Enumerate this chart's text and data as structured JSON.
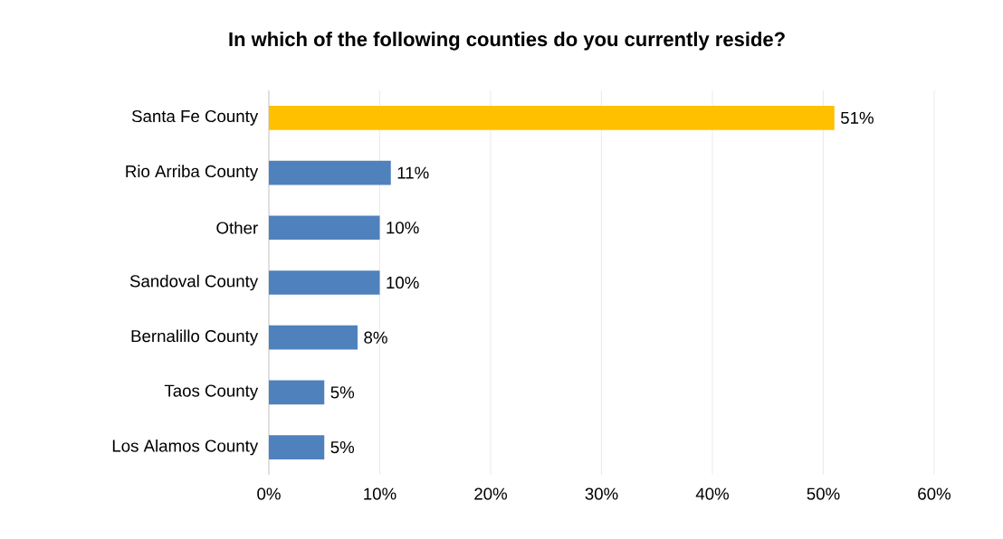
{
  "chart_data": {
    "type": "bar",
    "orientation": "horizontal",
    "title": "In which of the following counties do you currently reside?",
    "categories": [
      "Santa Fe County",
      "Rio Arriba County",
      "Other",
      "Sandoval County",
      "Bernalillo County",
      "Taos County",
      "Los Alamos County"
    ],
    "values": [
      51,
      11,
      10,
      10,
      8,
      5,
      5
    ],
    "value_labels": [
      "51%",
      "11%",
      "10%",
      "10%",
      "8%",
      "5%",
      "5%"
    ],
    "colors": [
      "#ffc000",
      "#4f81bd",
      "#4f81bd",
      "#4f81bd",
      "#4f81bd",
      "#4f81bd",
      "#4f81bd"
    ],
    "xlim": [
      0,
      60
    ],
    "xticks": [
      {
        "value": 0,
        "label": "0%"
      },
      {
        "value": 10,
        "label": "10%"
      },
      {
        "value": 20,
        "label": "20%"
      },
      {
        "value": 30,
        "label": "30%"
      },
      {
        "value": 40,
        "label": "40%"
      },
      {
        "value": 50,
        "label": "50%"
      },
      {
        "value": 60,
        "label": "60%"
      }
    ],
    "grid": "x"
  }
}
